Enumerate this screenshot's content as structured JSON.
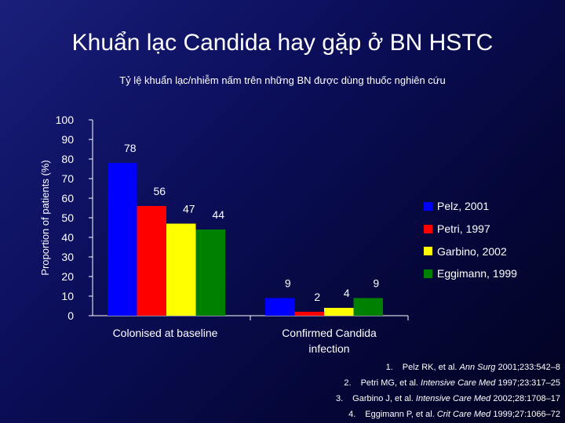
{
  "slide": {
    "title": "Khuẩn lạc Candida hay gặp ở BN HSTC",
    "subtitle": "Tỷ lệ khuẩn lạc/nhiễm nấm trên những BN được dùng thuốc nghiên cứu"
  },
  "chart_data": {
    "type": "bar",
    "ylabel": "Proportion of patients (%)",
    "ylim": [
      0,
      100
    ],
    "yticks": [
      0,
      10,
      20,
      30,
      40,
      50,
      60,
      70,
      80,
      90,
      100
    ],
    "categories": [
      "Colonised at baseline",
      "Confirmed Candida infection"
    ],
    "series": [
      {
        "name": "Pelz, 2001",
        "color": "#0000ff",
        "values": [
          78,
          9
        ]
      },
      {
        "name": "Petri, 1997",
        "color": "#ff0000",
        "values": [
          56,
          2
        ]
      },
      {
        "name": "Garbino, 2002",
        "color": "#ffff00",
        "values": [
          47,
          4
        ]
      },
      {
        "name": "Eggimann, 1999",
        "color": "#008000",
        "values": [
          44,
          9
        ]
      }
    ],
    "data_labels": [
      [
        "78",
        "56",
        "47",
        "44"
      ],
      [
        "9",
        "2",
        "4",
        "9"
      ]
    ],
    "legend": "right",
    "grid": false
  },
  "references": [
    {
      "num": "1.",
      "authors": "Pelz RK, et al.",
      "journal": "Ann Surg",
      "detail": "2001;233:542–8"
    },
    {
      "num": "2.",
      "authors": "Petri MG, et al.",
      "journal": "Intensive Care Med",
      "detail": "1997;23:317–25"
    },
    {
      "num": "3.",
      "authors": "Garbino J, et al.",
      "journal": "Intensive Care Med",
      "detail": "2002;28:1708–17"
    },
    {
      "num": "4.",
      "authors": "Eggimann P, et al.",
      "journal": "Crit Care Med",
      "detail": "1999;27:1066–72"
    }
  ]
}
